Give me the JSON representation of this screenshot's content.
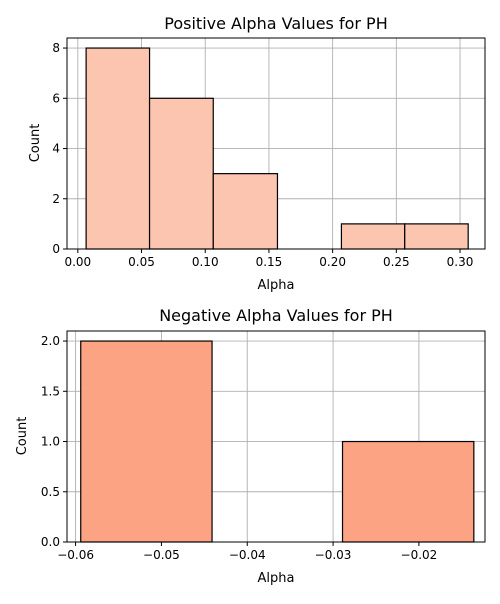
{
  "chart_data": [
    {
      "type": "bar",
      "title": "Positive Alpha Values for PH",
      "xlabel": "Alpha",
      "ylabel": "Count",
      "xlim": [
        -0.0085,
        0.3196
      ],
      "ylim": [
        0,
        8.4
      ],
      "xticks": [
        0.0,
        0.05,
        0.1,
        0.15,
        0.2,
        0.25,
        0.3
      ],
      "xtick_labels": [
        "0.00",
        "0.05",
        "0.10",
        "0.15",
        "0.20",
        "0.25",
        "0.30"
      ],
      "yticks": [
        0,
        2,
        4,
        6,
        8
      ],
      "ytick_labels": [
        "0",
        "2",
        "4",
        "6",
        "8"
      ],
      "bins": [
        {
          "x0": 0.0065,
          "x1": 0.0563,
          "count": 8
        },
        {
          "x0": 0.0563,
          "x1": 0.1063,
          "count": 6
        },
        {
          "x0": 0.1063,
          "x1": 0.1567,
          "count": 3
        },
        {
          "x0": 0.2069,
          "x1": 0.2566,
          "count": 1
        },
        {
          "x0": 0.2566,
          "x1": 0.3064,
          "count": 1
        }
      ],
      "bar_color": "#fcc5b0",
      "edge_color": "#000000",
      "grid": true
    },
    {
      "type": "bar",
      "title": "Negative Alpha Values for PH",
      "xlabel": "Alpha",
      "ylabel": "Count",
      "xlim": [
        -0.061,
        -0.0123
      ],
      "ylim": [
        0,
        2.1
      ],
      "xticks": [
        -0.06,
        -0.05,
        -0.04,
        -0.03,
        -0.02
      ],
      "xtick_labels": [
        "−0.06",
        "−0.05",
        "−0.04",
        "−0.03",
        "−0.02"
      ],
      "yticks": [
        0.0,
        0.5,
        1.0,
        1.5,
        2.0
      ],
      "ytick_labels": [
        "0.0",
        "0.5",
        "1.0",
        "1.5",
        "2.0"
      ],
      "bins": [
        {
          "x0": -0.0594,
          "x1": -0.0441,
          "count": 2
        },
        {
          "x0": -0.0441,
          "x1": -0.0289,
          "count": 0
        },
        {
          "x0": -0.0289,
          "x1": -0.0136,
          "count": 1
        }
      ],
      "bar_color": "#fca383",
      "edge_color": "#000000",
      "grid": true
    }
  ]
}
